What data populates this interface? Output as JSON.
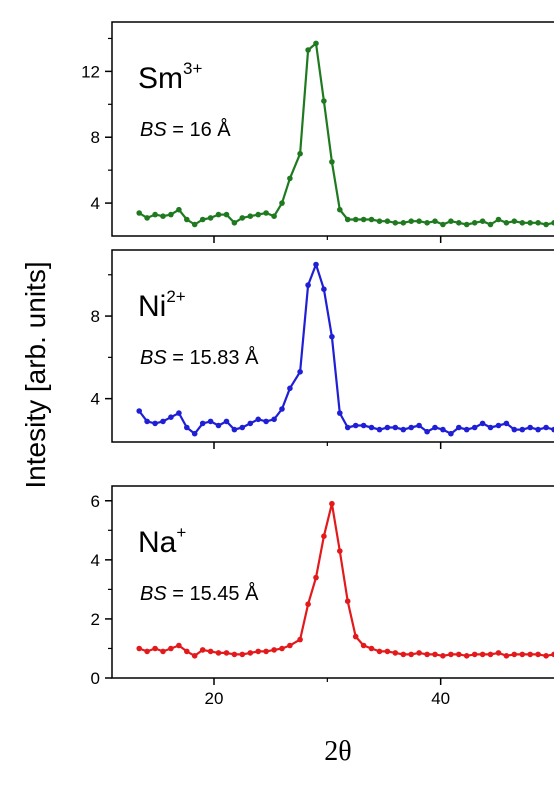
{
  "colors": {
    "sm": "#1f7a1f",
    "ni": "#1f1fd6",
    "na": "#e31a1c",
    "axis": "#000000"
  },
  "ylabel": "Intesity [arb. units]",
  "xlabel": "2θ",
  "chart_data": [
    {
      "type": "line",
      "panel": "Sm",
      "ion": "Sm",
      "charge": "3+",
      "bs_prefix": "BS",
      "bs_value": " = 16 Å",
      "xlim": [
        11,
        50
      ],
      "ylim": [
        2,
        15
      ],
      "yticks": [
        4,
        8,
        12
      ],
      "xticks": [
        20,
        40
      ],
      "show_xtick_labels": false,
      "series": [
        {
          "color": "#1f7a1f",
          "x": [
            13.4,
            14.1,
            14.8,
            15.5,
            16.2,
            16.9,
            17.6,
            18.3,
            19.0,
            19.7,
            20.4,
            21.1,
            21.8,
            22.5,
            23.2,
            23.9,
            24.6,
            25.3,
            26.0,
            26.7,
            27.6,
            28.3,
            29.0,
            29.7,
            30.4,
            31.1,
            31.8,
            32.5,
            33.2,
            33.9,
            34.6,
            35.3,
            36.0,
            36.7,
            37.4,
            38.1,
            38.8,
            39.5,
            40.2,
            40.9,
            41.6,
            42.3,
            43.0,
            43.7,
            44.4,
            45.1,
            45.8,
            46.5,
            47.2,
            47.9,
            48.6,
            49.3,
            50.0
          ],
          "y": [
            3.4,
            3.1,
            3.3,
            3.2,
            3.3,
            3.6,
            3.0,
            2.7,
            3.0,
            3.1,
            3.3,
            3.3,
            2.8,
            3.1,
            3.2,
            3.3,
            3.4,
            3.2,
            4.0,
            5.5,
            7.0,
            13.3,
            13.7,
            10.2,
            6.5,
            3.6,
            3.0,
            3.0,
            3.0,
            3.0,
            2.9,
            2.9,
            2.8,
            2.8,
            2.9,
            2.9,
            2.8,
            2.9,
            2.7,
            2.9,
            2.8,
            2.7,
            2.8,
            2.9,
            2.7,
            3.0,
            2.8,
            2.9,
            2.8,
            2.8,
            2.8,
            2.7,
            2.8
          ]
        }
      ]
    },
    {
      "type": "line",
      "panel": "Ni",
      "ion": "Ni",
      "charge": "2+",
      "bs_prefix": "BS",
      "bs_value": " = 15.83 Å",
      "xlim": [
        11,
        50
      ],
      "ylim": [
        1.9,
        11.2
      ],
      "yticks": [
        4,
        8
      ],
      "xticks": [
        20,
        40
      ],
      "show_xtick_labels": false,
      "series": [
        {
          "color": "#1f1fd6",
          "x": [
            13.4,
            14.1,
            14.8,
            15.5,
            16.2,
            16.9,
            17.6,
            18.3,
            19.0,
            19.7,
            20.4,
            21.1,
            21.8,
            22.5,
            23.2,
            23.9,
            24.6,
            25.3,
            26.0,
            26.7,
            27.6,
            28.3,
            29.0,
            29.7,
            30.4,
            31.1,
            31.8,
            32.5,
            33.2,
            33.9,
            34.6,
            35.3,
            36.0,
            36.7,
            37.4,
            38.1,
            38.8,
            39.5,
            40.2,
            40.9,
            41.6,
            42.3,
            43.0,
            43.7,
            44.4,
            45.1,
            45.8,
            46.5,
            47.2,
            47.9,
            48.6,
            49.3,
            50.0
          ],
          "y": [
            3.4,
            2.9,
            2.8,
            2.9,
            3.1,
            3.3,
            2.6,
            2.3,
            2.8,
            2.9,
            2.7,
            2.9,
            2.5,
            2.6,
            2.8,
            3.0,
            2.9,
            3.0,
            3.5,
            4.5,
            5.3,
            9.5,
            10.5,
            9.3,
            7.0,
            3.3,
            2.6,
            2.7,
            2.7,
            2.6,
            2.5,
            2.6,
            2.6,
            2.5,
            2.6,
            2.7,
            2.4,
            2.6,
            2.5,
            2.3,
            2.6,
            2.5,
            2.6,
            2.8,
            2.6,
            2.7,
            2.8,
            2.5,
            2.5,
            2.6,
            2.5,
            2.6,
            2.5
          ]
        }
      ]
    },
    {
      "type": "line",
      "panel": "Na",
      "ion": "Na",
      "charge": "+",
      "bs_prefix": "BS",
      "bs_value": " = 15.45 Å",
      "xlim": [
        11,
        50
      ],
      "ylim": [
        0,
        6.5
      ],
      "yticks": [
        0,
        2,
        4,
        6
      ],
      "xticks": [
        20,
        40
      ],
      "xticklabels": [
        "20",
        "40"
      ],
      "show_xtick_labels": true,
      "series": [
        {
          "color": "#e31a1c",
          "x": [
            13.4,
            14.1,
            14.8,
            15.5,
            16.2,
            16.9,
            17.6,
            18.3,
            19.0,
            19.7,
            20.4,
            21.1,
            21.8,
            22.5,
            23.2,
            23.9,
            24.6,
            25.3,
            26.0,
            26.7,
            27.6,
            28.3,
            29.0,
            29.7,
            30.4,
            31.1,
            31.8,
            32.5,
            33.2,
            33.9,
            34.6,
            35.3,
            36.0,
            36.7,
            37.4,
            38.1,
            38.8,
            39.5,
            40.2,
            40.9,
            41.6,
            42.3,
            43.0,
            43.7,
            44.4,
            45.1,
            45.8,
            46.5,
            47.2,
            47.9,
            48.6,
            49.3,
            50.0
          ],
          "y": [
            1.0,
            0.9,
            1.0,
            0.9,
            1.0,
            1.1,
            0.9,
            0.75,
            0.95,
            0.9,
            0.85,
            0.85,
            0.8,
            0.8,
            0.85,
            0.9,
            0.9,
            0.95,
            1.0,
            1.1,
            1.3,
            2.5,
            3.4,
            4.8,
            5.9,
            4.3,
            2.6,
            1.4,
            1.1,
            1.0,
            0.9,
            0.9,
            0.85,
            0.8,
            0.8,
            0.85,
            0.8,
            0.8,
            0.75,
            0.8,
            0.8,
            0.75,
            0.8,
            0.8,
            0.8,
            0.85,
            0.75,
            0.8,
            0.8,
            0.8,
            0.8,
            0.75,
            0.8
          ]
        }
      ]
    }
  ]
}
